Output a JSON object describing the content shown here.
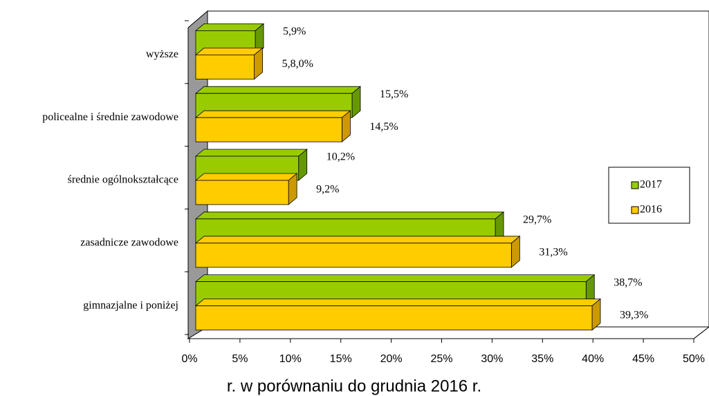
{
  "chart_data": {
    "type": "bar3d_horizontal",
    "categories": [
      "wyższe",
      "policealne i średnie zawodowe",
      "średnie ogólnokształcące",
      "zasadnicze zawodowe",
      "gimnazjalne i poniżej"
    ],
    "series": [
      {
        "name": "2017",
        "color": "#99cc00",
        "side_color": "#669900",
        "values": [
          5.9,
          15.5,
          10.2,
          29.7,
          38.7
        ],
        "value_labels": [
          "5,9%",
          "15,5%",
          "10,2%",
          "29,7%",
          "38,7%"
        ]
      },
      {
        "name": "2016",
        "color": "#ffcc00",
        "side_color": "#cc9900",
        "values": [
          5.8,
          14.5,
          9.2,
          31.3,
          39.3
        ],
        "value_labels": [
          "5,8,0%",
          "14,5%",
          "9,2%",
          "31,3%",
          "39,3%"
        ]
      }
    ],
    "xlim": [
      0,
      50
    ],
    "xticks": [
      {
        "value": 0,
        "label": "0%"
      },
      {
        "value": 5,
        "label": "5%"
      },
      {
        "value": 10,
        "label": "10%"
      },
      {
        "value": 15,
        "label": "15%"
      },
      {
        "value": 20,
        "label": "20%"
      },
      {
        "value": 25,
        "label": "25%"
      },
      {
        "value": 30,
        "label": "30%"
      },
      {
        "value": 35,
        "label": "35%"
      },
      {
        "value": 40,
        "label": "40%"
      },
      {
        "value": 45,
        "label": "45%"
      },
      {
        "value": 50,
        "label": "50%"
      }
    ],
    "legend": "right",
    "caption": "r. w porównaniu do grudnia 2016 r."
  }
}
